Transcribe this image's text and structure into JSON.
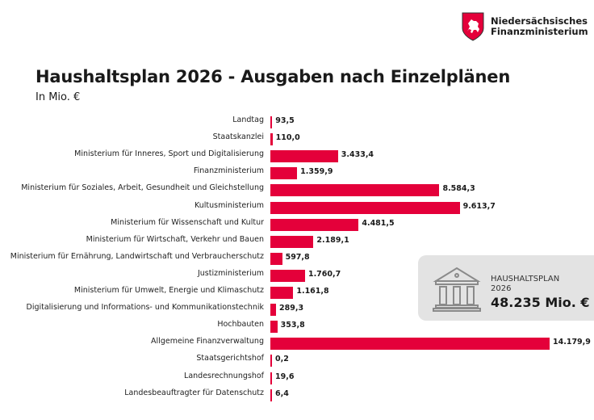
{
  "logo": {
    "line1": "Niedersächsisches",
    "line2": "Finanzministerium"
  },
  "header": {
    "title": "Haushaltsplan 2026 - Ausgaben nach Einzelplänen",
    "subtitle": "In Mio. €"
  },
  "summary": {
    "icon": "government-building-icon",
    "label_line1": "HAUSHALTSPLAN",
    "label_line2": "2026",
    "total": "48.235 Mio. €"
  },
  "chart_data": {
    "type": "bar",
    "orientation": "horizontal",
    "bar_color": "#e4003a",
    "title": "Haushaltsplan 2026 - Ausgaben nach Einzelplänen",
    "unit": "In Mio. €",
    "categories": [
      "Landtag",
      "Staatskanzlei",
      "Ministerium für Inneres, Sport und Digitalisierung",
      "Finanzministerium",
      "Ministerium für Soziales, Arbeit, Gesundheit und Gleichstellung",
      "Kultusministerium",
      "Ministerium für Wissenschaft und Kultur",
      "Ministerium für Wirtschaft, Verkehr und Bauen",
      "Ministerium für Ernährung, Landwirtschaft und Verbraucherschutz",
      "Justizministerium",
      "Ministerium für Umwelt, Energie und Klimaschutz",
      "Digitalisierung und Informations- und Kommunikationstechnik",
      "Hochbauten",
      "Allgemeine Finanzverwaltung",
      "Staatsgerichtshof",
      "Landesrechnungshof",
      "Landesbeauftragter für Datenschutz"
    ],
    "values": [
      93.5,
      110.0,
      3433.4,
      1359.9,
      8584.3,
      9613.7,
      4481.5,
      2189.1,
      597.8,
      1760.7,
      1161.8,
      289.3,
      353.8,
      14179.9,
      0.2,
      19.6,
      6.4
    ],
    "labels": [
      "93,5",
      "110,0",
      "3.433,4",
      "1.359,9",
      "8.584,3",
      "9.613,7",
      "4.481,5",
      "2.189,1",
      "597,8",
      "1.760,7",
      "1.161,8",
      "289,3",
      "353,8",
      "14.179,9",
      "0,2",
      "19,6",
      "6,4"
    ],
    "grid": false
  }
}
